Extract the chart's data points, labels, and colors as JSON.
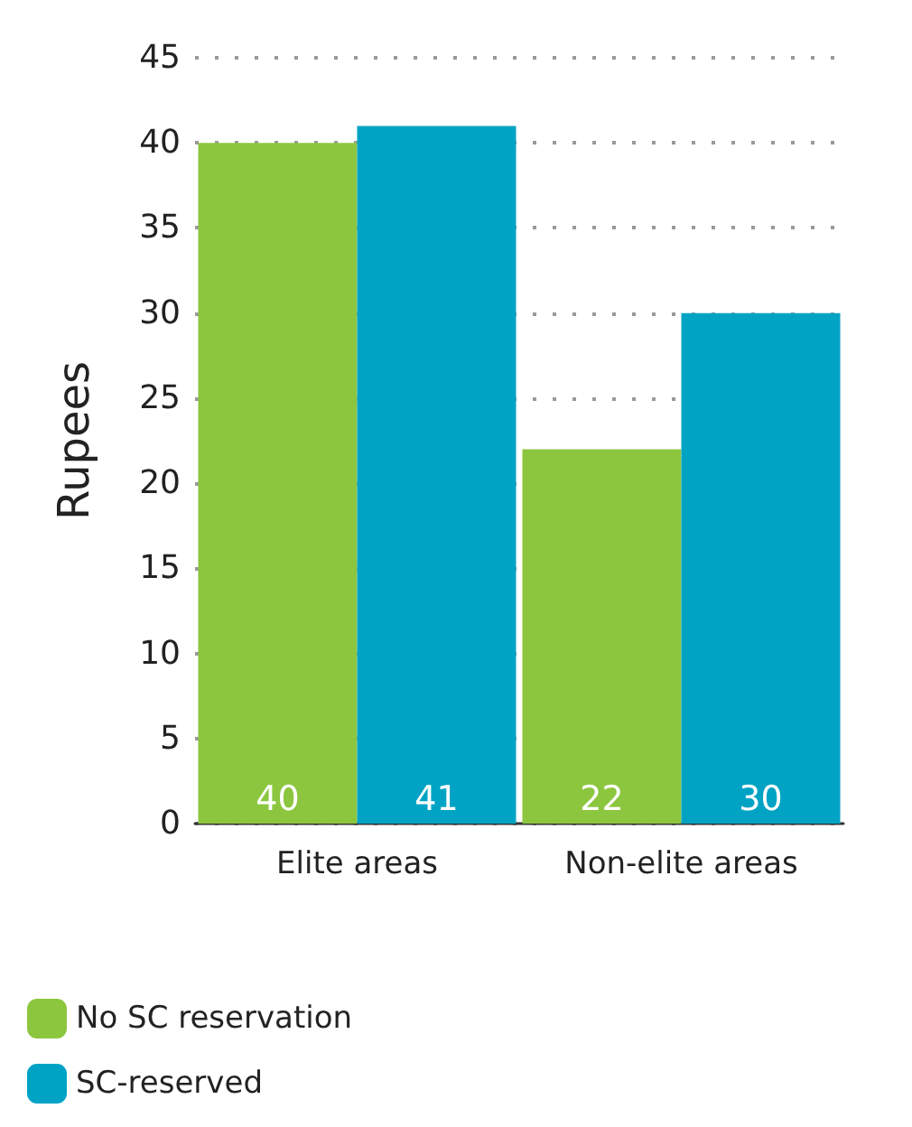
{
  "chart_data": {
    "type": "bar",
    "ylabel": "Rupees",
    "categories": [
      "Elite areas",
      "Non-elite areas"
    ],
    "series": [
      {
        "name": "No SC reservation",
        "color": "#8cc63f",
        "values": [
          40,
          22
        ]
      },
      {
        "name": "SC-reserved",
        "color": "#00a3c4",
        "values": [
          41,
          30
        ]
      }
    ],
    "ylim": [
      0,
      45
    ],
    "yticks": [
      0,
      5,
      10,
      15,
      20,
      25,
      30,
      35,
      40,
      45
    ],
    "grid": "y",
    "legend": "bottom left",
    "data_labels": true
  }
}
